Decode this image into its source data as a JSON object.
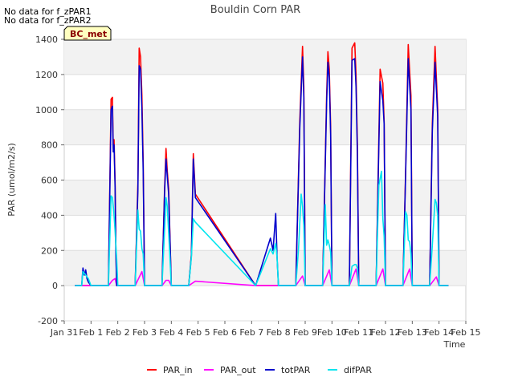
{
  "notes": [
    "No data for f_zPAR1",
    "No data for f_zPAR2"
  ],
  "site_label": "BC_met",
  "chart_data": {
    "type": "line",
    "title": "Bouldin Corn PAR",
    "xlabel": "Time",
    "ylabel": "PAR (umol/m2/s)",
    "ylim": [
      -200,
      1400
    ],
    "yticks": [
      -200,
      0,
      200,
      400,
      600,
      800,
      1000,
      1200,
      1400
    ],
    "xlim": [
      0,
      15
    ],
    "xticks": [
      0,
      1,
      2,
      3,
      4,
      5,
      6,
      7,
      8,
      9,
      10,
      11,
      12,
      13,
      14,
      15
    ],
    "xtick_labels": [
      "Jan 31",
      "Feb 1",
      "Feb 2",
      "Feb 3",
      "Feb 4",
      "Feb 5",
      "Feb 6",
      "Feb 7",
      "Feb 8",
      "Feb 9",
      "Feb 10",
      "Feb 11",
      "Feb 12",
      "Feb 13",
      "Feb 14",
      "Feb 15"
    ],
    "grid": true,
    "legend_position": "bottom",
    "series": [
      {
        "name": "PAR_in",
        "color": "#ff0000",
        "x": [
          0.4,
          0.65,
          0.7,
          0.8,
          0.9,
          1.0,
          1.3,
          1.65,
          1.75,
          1.8,
          1.83,
          1.86,
          1.9,
          1.93,
          1.96,
          2.0,
          2.3,
          2.65,
          2.75,
          2.8,
          2.85,
          2.9,
          2.95,
          3.0,
          3.3,
          3.65,
          3.75,
          3.8,
          3.85,
          3.9,
          4.0,
          4.3,
          4.65,
          4.75,
          4.82,
          4.9,
          7.15,
          8.0,
          8.3,
          8.65,
          8.8,
          8.9,
          8.95,
          9.0,
          9.3,
          9.65,
          9.8,
          9.85,
          9.9,
          9.95,
          10.0,
          10.3,
          10.65,
          10.75,
          10.85,
          10.9,
          10.95,
          11.0,
          11.3,
          11.65,
          11.8,
          11.9,
          11.95,
          12.0,
          12.3,
          12.65,
          12.75,
          12.85,
          12.95,
          13.0,
          13.3,
          13.65,
          13.75,
          13.85,
          13.95,
          14.0,
          14.35
        ],
        "y": [
          0,
          0,
          0,
          0,
          0,
          0,
          0,
          0,
          1060,
          1070,
          780,
          830,
          590,
          200,
          0,
          0,
          0,
          0,
          580,
          1350,
          1300,
          1080,
          700,
          0,
          0,
          0,
          560,
          780,
          650,
          550,
          0,
          0,
          0,
          180,
          750,
          520,
          0,
          0,
          0,
          0,
          940,
          1360,
          1130,
          0,
          0,
          0,
          1080,
          1330,
          1230,
          900,
          0,
          0,
          0,
          1350,
          1380,
          1200,
          800,
          0,
          0,
          0,
          1230,
          1150,
          930,
          0,
          0,
          0,
          640,
          1370,
          1080,
          0,
          0,
          0,
          920,
          1360,
          1000,
          0,
          0
        ]
      },
      {
        "name": "PAR_out",
        "color": "#ff00ff",
        "x": [
          0.4,
          1.65,
          1.8,
          1.9,
          1.96,
          2.65,
          2.9,
          3.0,
          3.65,
          3.8,
          3.9,
          4.0,
          4.65,
          4.9,
          7.15,
          8.0,
          8.65,
          8.9,
          9.0,
          9.65,
          9.9,
          10.0,
          10.65,
          10.9,
          11.0,
          11.65,
          11.9,
          12.0,
          12.65,
          12.9,
          13.0,
          13.65,
          13.9,
          14.0,
          14.35
        ],
        "y": [
          0,
          0,
          30,
          40,
          0,
          0,
          80,
          0,
          0,
          30,
          30,
          0,
          0,
          25,
          0,
          0,
          0,
          55,
          0,
          0,
          90,
          0,
          0,
          95,
          0,
          0,
          95,
          0,
          0,
          95,
          0,
          0,
          50,
          0,
          0
        ]
      },
      {
        "name": "totPAR",
        "color": "#0000cc",
        "x": [
          0.4,
          0.65,
          0.7,
          0.75,
          0.8,
          0.85,
          0.9,
          1.0,
          1.3,
          1.65,
          1.75,
          1.8,
          1.83,
          1.86,
          1.9,
          1.93,
          1.96,
          2.0,
          2.3,
          2.65,
          2.75,
          2.8,
          2.85,
          2.9,
          2.95,
          3.0,
          3.3,
          3.65,
          3.75,
          3.8,
          3.85,
          3.9,
          4.0,
          4.3,
          4.65,
          4.75,
          4.82,
          4.9,
          7.15,
          7.7,
          7.8,
          7.9,
          7.95,
          8.0,
          8.3,
          8.65,
          8.8,
          8.9,
          8.95,
          9.0,
          9.3,
          9.65,
          9.8,
          9.85,
          9.9,
          9.95,
          10.0,
          10.3,
          10.65,
          10.75,
          10.85,
          10.9,
          10.95,
          11.0,
          11.3,
          11.65,
          11.8,
          11.9,
          11.95,
          12.0,
          12.3,
          12.65,
          12.75,
          12.85,
          12.95,
          13.0,
          13.3,
          13.65,
          13.75,
          13.85,
          13.95,
          14.0,
          14.35
        ],
        "y": [
          0,
          0,
          100,
          60,
          90,
          40,
          20,
          0,
          0,
          0,
          1000,
          1020,
          760,
          800,
          560,
          180,
          0,
          0,
          0,
          0,
          540,
          1250,
          1230,
          1000,
          650,
          0,
          0,
          0,
          540,
          720,
          620,
          520,
          0,
          0,
          0,
          170,
          720,
          500,
          0,
          270,
          200,
          410,
          160,
          0,
          0,
          0,
          900,
          1300,
          1070,
          0,
          0,
          0,
          1040,
          1270,
          1180,
          860,
          0,
          0,
          0,
          1280,
          1290,
          1130,
          750,
          0,
          0,
          0,
          1160,
          1050,
          920,
          0,
          0,
          0,
          620,
          1290,
          1000,
          0,
          0,
          0,
          880,
          1270,
          960,
          0,
          0
        ]
      },
      {
        "name": "difPAR",
        "color": "#00e5ee",
        "x": [
          0.4,
          0.65,
          0.7,
          0.8,
          0.9,
          1.0,
          1.3,
          1.65,
          1.75,
          1.8,
          1.85,
          1.9,
          1.96,
          2.0,
          2.3,
          2.65,
          2.75,
          2.8,
          2.85,
          2.9,
          2.95,
          3.0,
          3.3,
          3.65,
          3.75,
          3.8,
          3.85,
          3.9,
          4.0,
          4.3,
          4.65,
          4.75,
          4.82,
          4.9,
          7.15,
          7.7,
          7.8,
          7.9,
          7.95,
          8.0,
          8.3,
          8.65,
          8.75,
          8.85,
          8.9,
          8.95,
          9.0,
          9.3,
          9.65,
          9.75,
          9.8,
          9.85,
          9.9,
          9.95,
          10.0,
          10.3,
          10.65,
          10.75,
          10.85,
          10.9,
          10.95,
          11.0,
          11.3,
          11.65,
          11.75,
          11.85,
          11.9,
          11.95,
          12.0,
          12.3,
          12.65,
          12.75,
          12.8,
          12.85,
          12.9,
          12.95,
          13.0,
          13.3,
          13.65,
          13.75,
          13.85,
          13.9,
          13.95,
          14.0,
          14.35
        ],
        "y": [
          0,
          0,
          80,
          60,
          40,
          0,
          0,
          0,
          510,
          500,
          420,
          310,
          150,
          0,
          0,
          0,
          430,
          320,
          310,
          210,
          180,
          0,
          0,
          0,
          320,
          500,
          450,
          300,
          0,
          0,
          0,
          160,
          380,
          360,
          0,
          210,
          180,
          240,
          160,
          0,
          0,
          0,
          210,
          520,
          450,
          340,
          0,
          0,
          0,
          460,
          230,
          260,
          230,
          190,
          0,
          0,
          0,
          110,
          120,
          120,
          100,
          0,
          0,
          0,
          570,
          650,
          380,
          280,
          0,
          0,
          0,
          420,
          400,
          260,
          250,
          180,
          0,
          0,
          0,
          230,
          490,
          470,
          400,
          0,
          0
        ]
      }
    ]
  }
}
